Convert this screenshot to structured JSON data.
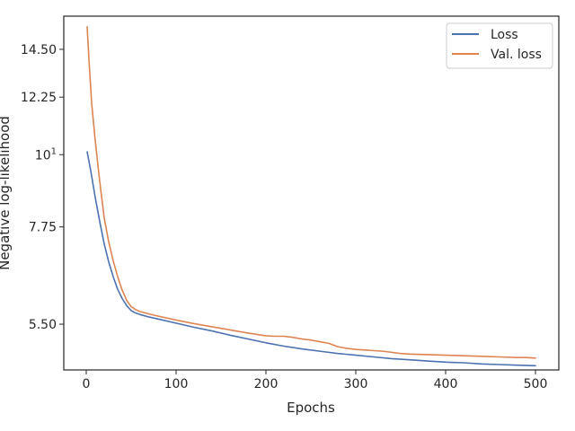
{
  "chart_data": {
    "type": "line",
    "xlabel": "Epochs",
    "ylabel": "Negative log-likelihood",
    "xlim": [
      -25,
      526
    ],
    "ylim": [
      4.68,
      16.3
    ],
    "yscale": "log",
    "xticks": [
      0,
      100,
      200,
      300,
      400,
      500
    ],
    "xtick_labels": [
      "0",
      "100",
      "200",
      "300",
      "400",
      "500"
    ],
    "yticks": [
      5.5,
      7.75,
      10,
      12.25,
      14.5
    ],
    "ytick_labels": [
      "5.50",
      "7.75",
      "10",
      "12.25",
      "14.50"
    ],
    "ytick_superscripts": [
      "",
      "",
      "1",
      "",
      ""
    ],
    "grid": false,
    "legend_position": "top-right",
    "series": [
      {
        "name": "Loss",
        "color": "#4c72b0",
        "x": [
          1,
          5,
          10,
          15,
          20,
          25,
          30,
          35,
          40,
          45,
          50,
          55,
          60,
          70,
          80,
          100,
          120,
          140,
          160,
          180,
          200,
          220,
          240,
          260,
          280,
          300,
          320,
          340,
          360,
          380,
          400,
          420,
          440,
          460,
          480,
          500
        ],
        "y": [
          10.1,
          9.45,
          8.6,
          7.9,
          7.3,
          6.85,
          6.5,
          6.22,
          6.02,
          5.87,
          5.77,
          5.72,
          5.69,
          5.64,
          5.6,
          5.52,
          5.44,
          5.37,
          5.29,
          5.22,
          5.15,
          5.09,
          5.04,
          5.0,
          4.96,
          4.93,
          4.9,
          4.87,
          4.85,
          4.83,
          4.81,
          4.8,
          4.78,
          4.77,
          4.76,
          4.75
        ]
      },
      {
        "name": "Val. loss",
        "color": "#dd8452",
        "x": [
          1,
          3,
          6,
          10,
          15,
          20,
          25,
          30,
          35,
          40,
          45,
          50,
          55,
          60,
          70,
          80,
          100,
          120,
          140,
          160,
          180,
          200,
          210,
          220,
          230,
          240,
          250,
          260,
          270,
          280,
          290,
          300,
          310,
          320,
          330,
          340,
          350,
          360,
          380,
          400,
          420,
          440,
          460,
          480,
          490,
          500
        ],
        "y": [
          15.7,
          14.0,
          12.0,
          10.5,
          9.1,
          8.0,
          7.35,
          6.88,
          6.5,
          6.2,
          5.98,
          5.85,
          5.79,
          5.75,
          5.7,
          5.66,
          5.58,
          5.51,
          5.45,
          5.39,
          5.33,
          5.28,
          5.27,
          5.27,
          5.25,
          5.22,
          5.2,
          5.17,
          5.14,
          5.08,
          5.05,
          5.03,
          5.02,
          5.01,
          5.0,
          4.98,
          4.96,
          4.95,
          4.94,
          4.93,
          4.92,
          4.91,
          4.9,
          4.89,
          4.89,
          4.88
        ]
      }
    ]
  }
}
